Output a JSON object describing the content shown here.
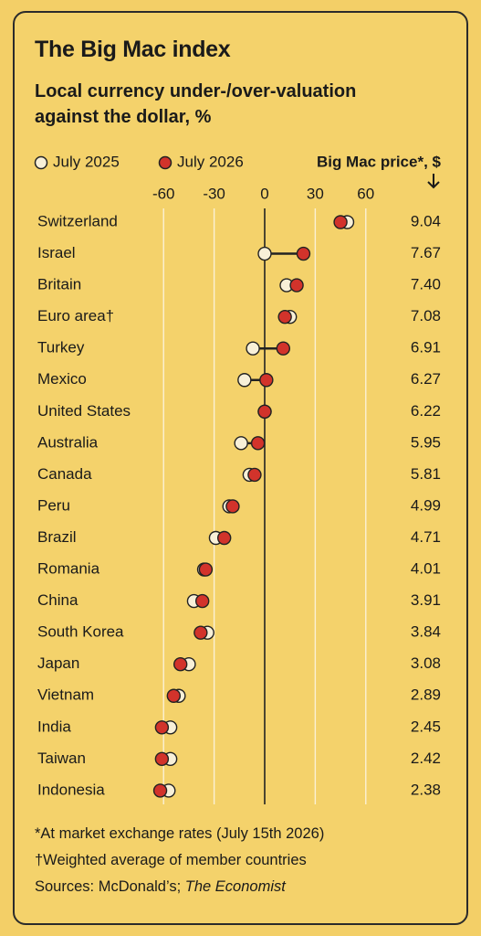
{
  "chart_data": {
    "type": "dot",
    "title": "The Big Mac index",
    "subtitle": "Local currency under-/over-valuation against the dollar, %",
    "categories": [
      "Switzerland",
      "Israel",
      "Britain",
      "Euro area†",
      "Turkey",
      "Mexico",
      "United States",
      "Australia",
      "Canada",
      "Peru",
      "Brazil",
      "Romania",
      "China",
      "South Korea",
      "Japan",
      "Vietnam",
      "India",
      "Taiwan",
      "Indonesia"
    ],
    "series": [
      {
        "name": "July 2025",
        "color": "#f8f0d8",
        "values": [
          49,
          0,
          13,
          15,
          -7,
          -12,
          0,
          -14,
          -9,
          -21,
          -29,
          -36,
          -42,
          -34,
          -45,
          -51,
          -56,
          -56,
          -57
        ]
      },
      {
        "name": "July 2026",
        "color": "#d2332b",
        "values": [
          45,
          23,
          19,
          12,
          11,
          1,
          0,
          -4,
          -6,
          -19,
          -24,
          -35,
          -37,
          -38,
          -50,
          -54,
          -61,
          -61,
          -62
        ]
      }
    ],
    "xlim": [
      -65,
      65
    ],
    "xticks": [
      -60,
      -30,
      0,
      30,
      60
    ],
    "grid": true,
    "price_header": "Big Mac price*, $",
    "prices": {
      "values": [
        9.04,
        7.67,
        7.4,
        7.08,
        6.91,
        6.27,
        6.22,
        5.95,
        5.81,
        4.99,
        4.71,
        4.01,
        3.91,
        3.84,
        3.08,
        2.89,
        2.45,
        2.42,
        2.38
      ],
      "value_labels": [
        "9.04",
        "7.67",
        "7.40",
        "7.08",
        "6.91",
        "6.27",
        "6.22",
        "5.95",
        "5.81",
        "4.99",
        "4.71",
        "4.01",
        "3.91",
        "3.84",
        "3.08",
        "2.89",
        "2.45",
        "2.42",
        "2.38"
      ]
    },
    "footnotes": [
      "*At market exchange rates (July 15th 2026)",
      "†Weighted average of member countries"
    ],
    "sources": [
      "Sources: McDonald’s;",
      "The Economist"
    ]
  }
}
